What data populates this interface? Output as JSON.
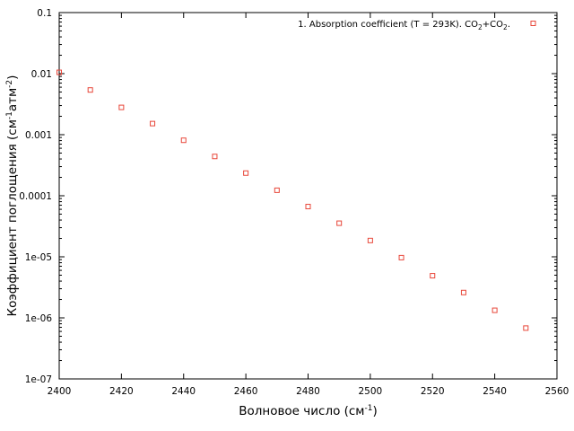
{
  "chart_data": {
    "type": "scatter",
    "title": "",
    "xlabel": "Волновое число (см",
    "xlabel_sup": "-1",
    "xlabel_close": ")",
    "ylabel_parts": [
      "Коэффициент поглощения (см",
      "-1",
      "атм",
      "-2",
      ")"
    ],
    "xlim": [
      2400,
      2560
    ],
    "ylim": [
      1e-07,
      0.1
    ],
    "yscale": "log",
    "grid": false,
    "legend_position": "top-right",
    "x_ticks": [
      2400,
      2420,
      2440,
      2460,
      2480,
      2500,
      2520,
      2540,
      2560
    ],
    "x_tick_labels": [
      "2400",
      "2420",
      "2440",
      "2460",
      "2480",
      "2500",
      "2520",
      "2540",
      "2560"
    ],
    "y_ticks": [
      1e-07,
      1e-06,
      1e-05,
      0.0001,
      0.001,
      0.01,
      0.1
    ],
    "y_tick_labels": [
      "1e-07",
      "1e-06",
      "1e-05",
      "0.0001",
      "0.001",
      "0.01",
      "0.1"
    ],
    "series": [
      {
        "name": "1. Absorption coefficient (T = 293K). CO2+CO2.",
        "name_parts": [
          "1. Absorption coefficient (T = 293K). CO",
          "2",
          "+CO",
          "2",
          "."
        ],
        "color": "#e8473a",
        "marker": "square",
        "x": [
          2400,
          2410,
          2420,
          2430,
          2440,
          2450,
          2460,
          2470,
          2480,
          2490,
          2500,
          2510,
          2520,
          2530,
          2540,
          2550
        ],
        "y": [
          0.0105,
          0.0054,
          0.0028,
          0.00152,
          0.00081,
          0.00044,
          0.000235,
          0.000123,
          6.65e-05,
          3.55e-05,
          1.85e-05,
          9.7e-06,
          4.9e-06,
          2.6e-06,
          1.33e-06,
          6.8e-07
        ]
      }
    ]
  }
}
